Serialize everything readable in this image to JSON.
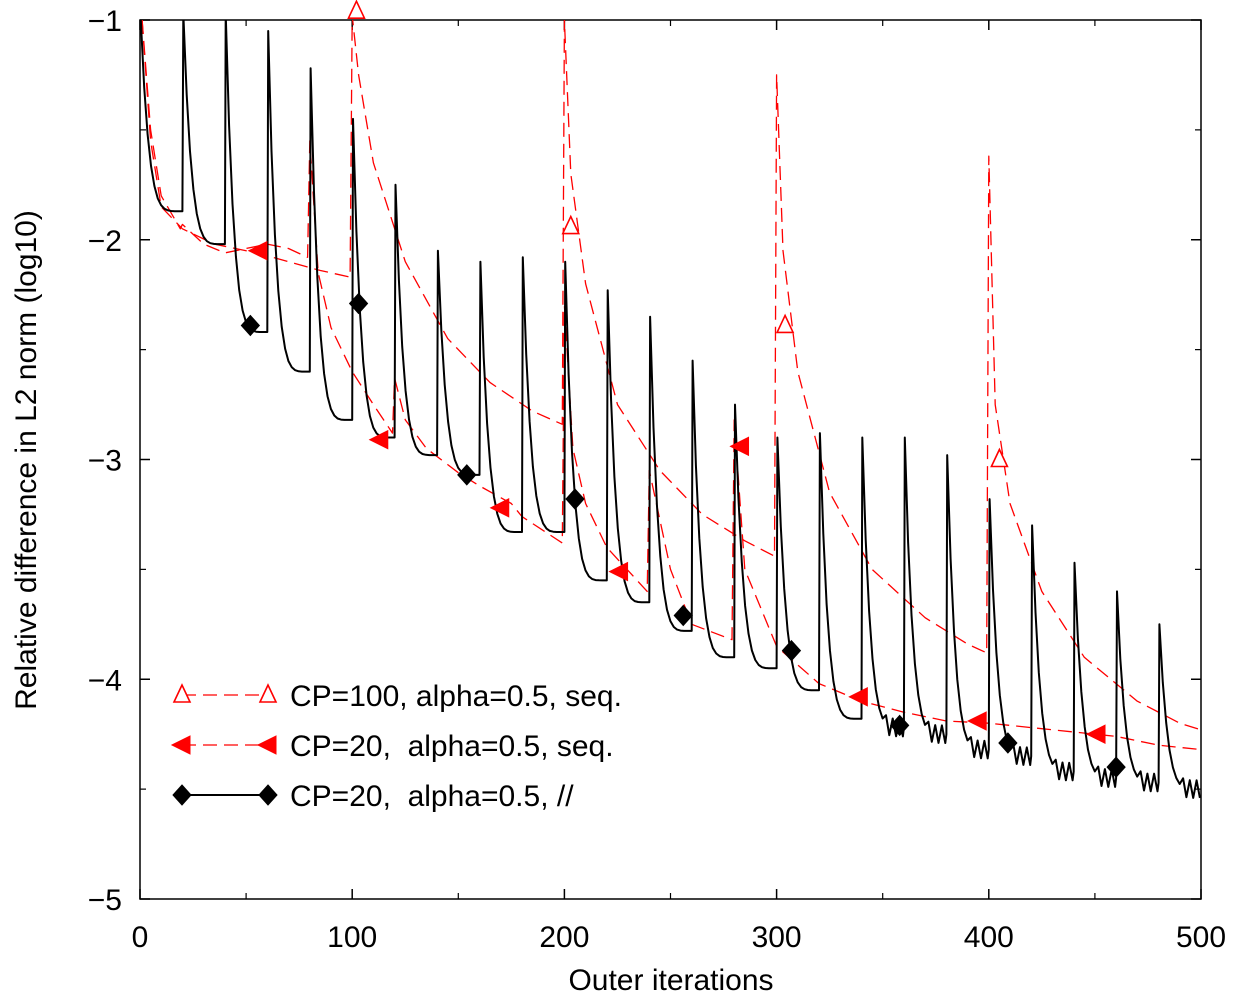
{
  "chart_data": {
    "type": "line",
    "xlabel": "Outer iterations",
    "ylabel": "Relative difference in L2 norm (log10)",
    "xlim": [
      0,
      500
    ],
    "ylim": [
      -5,
      -1
    ],
    "x_ticks": [
      0,
      100,
      200,
      300,
      400,
      500
    ],
    "y_ticks": [
      -5,
      -4,
      -3,
      -2,
      -1
    ],
    "x_tick_labels": [
      "0",
      "100",
      "200",
      "300",
      "400",
      "500"
    ],
    "y_tick_labels": [
      "−5",
      "−4",
      "−3",
      "−2",
      "−1"
    ],
    "grid": false,
    "legend_position": "bottom-left",
    "series": [
      {
        "name": "CP=100, alpha=0.5, seq.",
        "color": "#ff0000",
        "line": "dashed",
        "marker": "triangle-up-open",
        "restart_every": 100,
        "markers": [
          [
            102,
            -0.96
          ],
          [
            203,
            -1.94
          ],
          [
            304,
            -2.39
          ],
          [
            405,
            -3.0
          ]
        ],
        "points": [
          [
            1,
            -1.0
          ],
          [
            5,
            -1.55
          ],
          [
            10,
            -1.85
          ],
          [
            20,
            -1.95
          ],
          [
            35,
            -2.02
          ],
          [
            55,
            -2.06
          ],
          [
            70,
            -2.1
          ],
          [
            85,
            -2.14
          ],
          [
            99,
            -2.17
          ],
          [
            100,
            -0.98
          ],
          [
            103,
            -1.25
          ],
          [
            110,
            -1.65
          ],
          [
            125,
            -2.1
          ],
          [
            145,
            -2.45
          ],
          [
            165,
            -2.65
          ],
          [
            185,
            -2.78
          ],
          [
            199,
            -2.84
          ],
          [
            200,
            -1.0
          ],
          [
            203,
            -1.7
          ],
          [
            210,
            -2.2
          ],
          [
            225,
            -2.75
          ],
          [
            245,
            -3.05
          ],
          [
            265,
            -3.25
          ],
          [
            285,
            -3.37
          ],
          [
            299,
            -3.44
          ],
          [
            300,
            -1.25
          ],
          [
            303,
            -2.05
          ],
          [
            310,
            -2.6
          ],
          [
            325,
            -3.15
          ],
          [
            345,
            -3.5
          ],
          [
            370,
            -3.72
          ],
          [
            390,
            -3.84
          ],
          [
            399,
            -3.88
          ],
          [
            400,
            -1.62
          ],
          [
            403,
            -2.75
          ],
          [
            410,
            -3.2
          ],
          [
            425,
            -3.6
          ],
          [
            445,
            -3.9
          ],
          [
            470,
            -4.1
          ],
          [
            490,
            -4.2
          ],
          [
            500,
            -4.23
          ]
        ]
      },
      {
        "name": "CP=20,  alpha=0.5, seq.",
        "color": "#ff0000",
        "line": "dashed",
        "marker": "triangle-left-filled",
        "restart_every": 20,
        "markers": [
          [
            56,
            -2.05
          ],
          [
            113,
            -2.91
          ],
          [
            170,
            -3.22
          ],
          [
            226,
            -3.51
          ],
          [
            283,
            -2.94
          ],
          [
            339,
            -4.08
          ],
          [
            395,
            -4.19
          ],
          [
            451,
            -4.25
          ]
        ],
        "points": [
          [
            1,
            -1.0
          ],
          [
            5,
            -1.5
          ],
          [
            10,
            -1.8
          ],
          [
            19,
            -1.95
          ],
          [
            20,
            -1.93
          ],
          [
            30,
            -2.02
          ],
          [
            40,
            -2.06
          ],
          [
            50,
            -2.04
          ],
          [
            60,
            -2.02
          ],
          [
            70,
            -2.04
          ],
          [
            79,
            -2.08
          ],
          [
            80,
            -1.55
          ],
          [
            84,
            -2.15
          ],
          [
            90,
            -2.4
          ],
          [
            100,
            -2.6
          ],
          [
            110,
            -2.75
          ],
          [
            119,
            -2.88
          ],
          [
            120,
            -2.63
          ],
          [
            125,
            -2.82
          ],
          [
            135,
            -2.95
          ],
          [
            150,
            -3.06
          ],
          [
            160,
            -3.12
          ],
          [
            175,
            -3.2
          ],
          [
            180,
            -3.26
          ],
          [
            199,
            -3.38
          ],
          [
            200,
            -2.3
          ],
          [
            204,
            -2.95
          ],
          [
            210,
            -3.2
          ],
          [
            220,
            -3.4
          ],
          [
            239,
            -3.6
          ],
          [
            240,
            -3.05
          ],
          [
            250,
            -3.5
          ],
          [
            260,
            -3.75
          ],
          [
            279,
            -3.82
          ],
          [
            280,
            -2.82
          ],
          [
            285,
            -3.5
          ],
          [
            300,
            -3.85
          ],
          [
            320,
            -4.02
          ],
          [
            340,
            -4.1
          ],
          [
            360,
            -4.15
          ],
          [
            380,
            -4.19
          ],
          [
            400,
            -4.2
          ],
          [
            420,
            -4.22
          ],
          [
            440,
            -4.24
          ],
          [
            460,
            -4.26
          ],
          [
            480,
            -4.3
          ],
          [
            500,
            -4.32
          ]
        ]
      },
      {
        "name": "CP=20,  alpha=0.5, //",
        "color": "#000000",
        "line": "solid",
        "marker": "diamond-filled",
        "restart_every": 20,
        "markers": [
          [
            52,
            -2.39
          ],
          [
            103,
            -2.29
          ],
          [
            154,
            -3.07
          ],
          [
            205,
            -3.18
          ],
          [
            256,
            -3.71
          ],
          [
            307,
            -3.87
          ],
          [
            358,
            -4.21
          ],
          [
            409,
            -4.29
          ],
          [
            460,
            -4.4
          ]
        ],
        "cycles": [
          {
            "start": 0,
            "peak": -1.0,
            "end": -1.87
          },
          {
            "start": 20,
            "peak": -0.97,
            "end": -2.02
          },
          {
            "start": 40,
            "peak": -0.97,
            "end": -2.42
          },
          {
            "start": 60,
            "peak": -1.05,
            "end": -2.6
          },
          {
            "start": 80,
            "peak": -1.22,
            "end": -2.82
          },
          {
            "start": 100,
            "peak": -1.45,
            "end": -2.9
          },
          {
            "start": 120,
            "peak": -1.75,
            "end": -2.98
          },
          {
            "start": 140,
            "peak": -2.05,
            "end": -3.07
          },
          {
            "start": 160,
            "peak": -2.1,
            "end": -3.33
          },
          {
            "start": 180,
            "peak": -2.08,
            "end": -3.33
          },
          {
            "start": 200,
            "peak": -2.1,
            "end": -3.55
          },
          {
            "start": 220,
            "peak": -2.23,
            "end": -3.65
          },
          {
            "start": 240,
            "peak": -2.35,
            "end": -3.78
          },
          {
            "start": 260,
            "peak": -2.55,
            "end": -3.9
          },
          {
            "start": 280,
            "peak": -2.75,
            "end": -3.95
          },
          {
            "start": 300,
            "peak": -2.9,
            "end": -4.05
          },
          {
            "start": 320,
            "peak": -2.88,
            "end": -4.18
          },
          {
            "start": 340,
            "peak": -2.9,
            "end": -4.22
          },
          {
            "start": 360,
            "peak": -2.9,
            "end": -4.25
          },
          {
            "start": 380,
            "peak": -2.98,
            "end": -4.32
          },
          {
            "start": 400,
            "peak": -3.18,
            "end": -4.35
          },
          {
            "start": 420,
            "peak": -3.3,
            "end": -4.42
          },
          {
            "start": 440,
            "peak": -3.47,
            "end": -4.45
          },
          {
            "start": 460,
            "peak": -3.6,
            "end": -4.47
          },
          {
            "start": 480,
            "peak": -3.75,
            "end": -4.5
          }
        ]
      }
    ]
  }
}
